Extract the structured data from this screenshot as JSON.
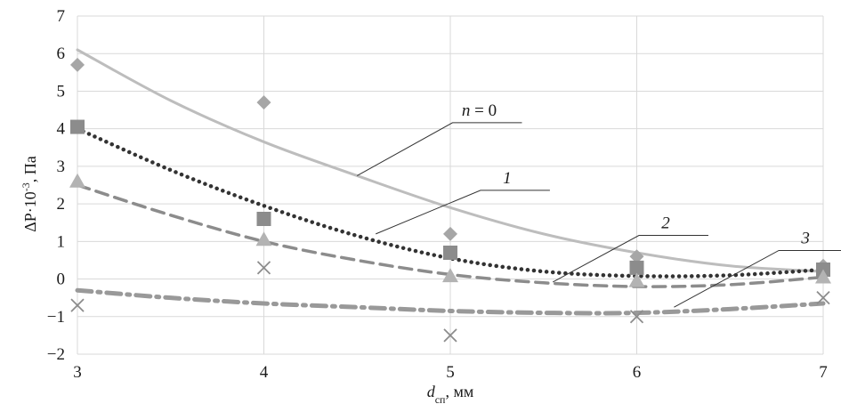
{
  "chart_data": {
    "type": "scatter",
    "title": "",
    "xlabel": "d",
    "xlabel_sub": "сп",
    "xlabel_unit": ", мм",
    "ylabel": "ΔP·10",
    "ylabel_sup": "-3",
    "ylabel_unit": ", Па",
    "xlim": [
      3,
      7
    ],
    "ylim": [
      -2,
      7
    ],
    "xticks": [
      "3",
      "4",
      "5",
      "6",
      "7"
    ],
    "yticks": [
      "−2",
      "−1",
      "0",
      "1",
      "2",
      "3",
      "4",
      "5",
      "6",
      "7"
    ],
    "grid": true,
    "legend": "none",
    "series": [
      {
        "name": "n = 0",
        "name_var": "n",
        "name_rest": " = 0",
        "marker": "diamond",
        "line": "solid",
        "color": "#bdbdbd",
        "marker_color": "#a6a6a6",
        "points": [
          [
            3,
            5.7
          ],
          [
            4,
            4.7
          ],
          [
            5,
            1.2
          ],
          [
            6,
            0.6
          ],
          [
            7,
            0.35
          ]
        ],
        "trend": [
          [
            3,
            6.1
          ],
          [
            3.5,
            4.75
          ],
          [
            4,
            3.65
          ],
          [
            4.5,
            2.75
          ],
          [
            5,
            1.9
          ],
          [
            5.5,
            1.2
          ],
          [
            6,
            0.7
          ],
          [
            6.5,
            0.35
          ],
          [
            7,
            0.2
          ]
        ]
      },
      {
        "name": "1",
        "marker": "square",
        "line": "dotted",
        "color": "#333333",
        "marker_color": "#8c8c8c",
        "points": [
          [
            3,
            4.05
          ],
          [
            4,
            1.6
          ],
          [
            5,
            0.7
          ],
          [
            6,
            0.3
          ],
          [
            7,
            0.25
          ]
        ],
        "trend": [
          [
            3,
            4.0
          ],
          [
            3.5,
            2.9
          ],
          [
            4,
            1.95
          ],
          [
            4.5,
            1.15
          ],
          [
            5,
            0.55
          ],
          [
            5.5,
            0.2
          ],
          [
            6,
            0.08
          ],
          [
            6.5,
            0.1
          ],
          [
            7,
            0.25
          ]
        ]
      },
      {
        "name": "2",
        "marker": "triangle",
        "line": "dashed",
        "color": "#8c8c8c",
        "marker_color": "#b3b3b3",
        "points": [
          [
            3,
            2.6
          ],
          [
            4,
            1.05
          ],
          [
            5,
            0.08
          ],
          [
            6,
            -0.05
          ],
          [
            7,
            0.05
          ]
        ],
        "trend": [
          [
            3,
            2.5
          ],
          [
            3.5,
            1.7
          ],
          [
            4,
            1.0
          ],
          [
            4.5,
            0.5
          ],
          [
            5,
            0.12
          ],
          [
            5.5,
            -0.1
          ],
          [
            6,
            -0.2
          ],
          [
            6.5,
            -0.15
          ],
          [
            7,
            0.05
          ]
        ]
      },
      {
        "name": "3",
        "marker": "cross",
        "line": "dash-dot",
        "color": "#999999",
        "marker_color": "#8c8c8c",
        "points": [
          [
            3,
            -0.7
          ],
          [
            4,
            0.3
          ],
          [
            5,
            -1.5
          ],
          [
            6,
            -1.0
          ],
          [
            7,
            -0.5
          ]
        ],
        "trend": [
          [
            3,
            -0.3
          ],
          [
            3.5,
            -0.5
          ],
          [
            4,
            -0.65
          ],
          [
            4.5,
            -0.75
          ],
          [
            5,
            -0.85
          ],
          [
            5.5,
            -0.9
          ],
          [
            6,
            -0.9
          ],
          [
            6.5,
            -0.8
          ],
          [
            7,
            -0.65
          ]
        ]
      }
    ],
    "annotations": [
      {
        "series": 0,
        "point": [
          4.5,
          2.75
        ],
        "label_x": 5.05,
        "label_y": 4.35
      },
      {
        "series": 1,
        "point": [
          4.6,
          1.2
        ],
        "label_x": 5.2,
        "label_y": 2.55
      },
      {
        "series": 2,
        "point": [
          5.55,
          -0.08
        ],
        "label_x": 6.05,
        "label_y": 1.35
      },
      {
        "series": 3,
        "point": [
          6.2,
          -0.75
        ],
        "label_x": 6.8,
        "label_y": 0.95
      }
    ]
  }
}
